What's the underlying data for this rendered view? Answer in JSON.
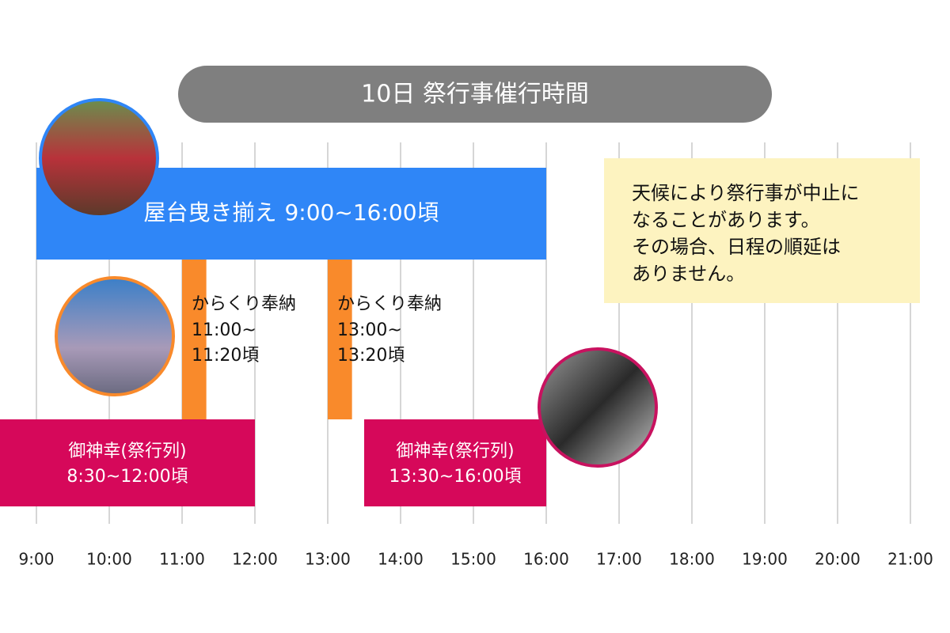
{
  "chart_data": {
    "type": "timeline",
    "title": "10日 祭行事催行時間",
    "xlim": [
      8.5,
      21.5
    ],
    "xticks": [
      {
        "value": 9,
        "label": "9:00"
      },
      {
        "value": 10,
        "label": "10:00"
      },
      {
        "value": 11,
        "label": "11:00"
      },
      {
        "value": 12,
        "label": "12:00"
      },
      {
        "value": 13,
        "label": "13:00"
      },
      {
        "value": 14,
        "label": "14:00"
      },
      {
        "value": 15,
        "label": "15:00"
      },
      {
        "value": 16,
        "label": "16:00"
      },
      {
        "value": 17,
        "label": "17:00"
      },
      {
        "value": 18,
        "label": "18:00"
      },
      {
        "value": 19,
        "label": "19:00"
      },
      {
        "value": 20,
        "label": "20:00"
      },
      {
        "value": 21,
        "label": "21:00"
      }
    ],
    "grid": true,
    "series": [
      {
        "name": "屋台曳き揃え",
        "time": "9:00~16:00頃",
        "start": 9,
        "end": 16,
        "color": "#2f86f7"
      },
      {
        "name": "からくり奉納",
        "time": [
          "11:00~",
          "11:20頃"
        ],
        "start": 11,
        "end": 11.333,
        "color": "#f98a2b"
      },
      {
        "name": "からくり奉納",
        "time": [
          "13:00~",
          "13:20頃"
        ],
        "start": 13,
        "end": 13.333,
        "color": "#f98a2b"
      },
      {
        "name": "御神幸(祭行列)",
        "time": "8:30~12:00頃",
        "start": 8.5,
        "end": 12,
        "color": "#d6085a"
      },
      {
        "name": "御神幸(祭行列)",
        "time": "13:30~16:00頃",
        "start": 13.5,
        "end": 16,
        "color": "#d6085a"
      }
    ],
    "note": [
      "天候により祭行事が中止に",
      "なることがあります。",
      "その場合、日程の順延は",
      "ありません。"
    ]
  }
}
